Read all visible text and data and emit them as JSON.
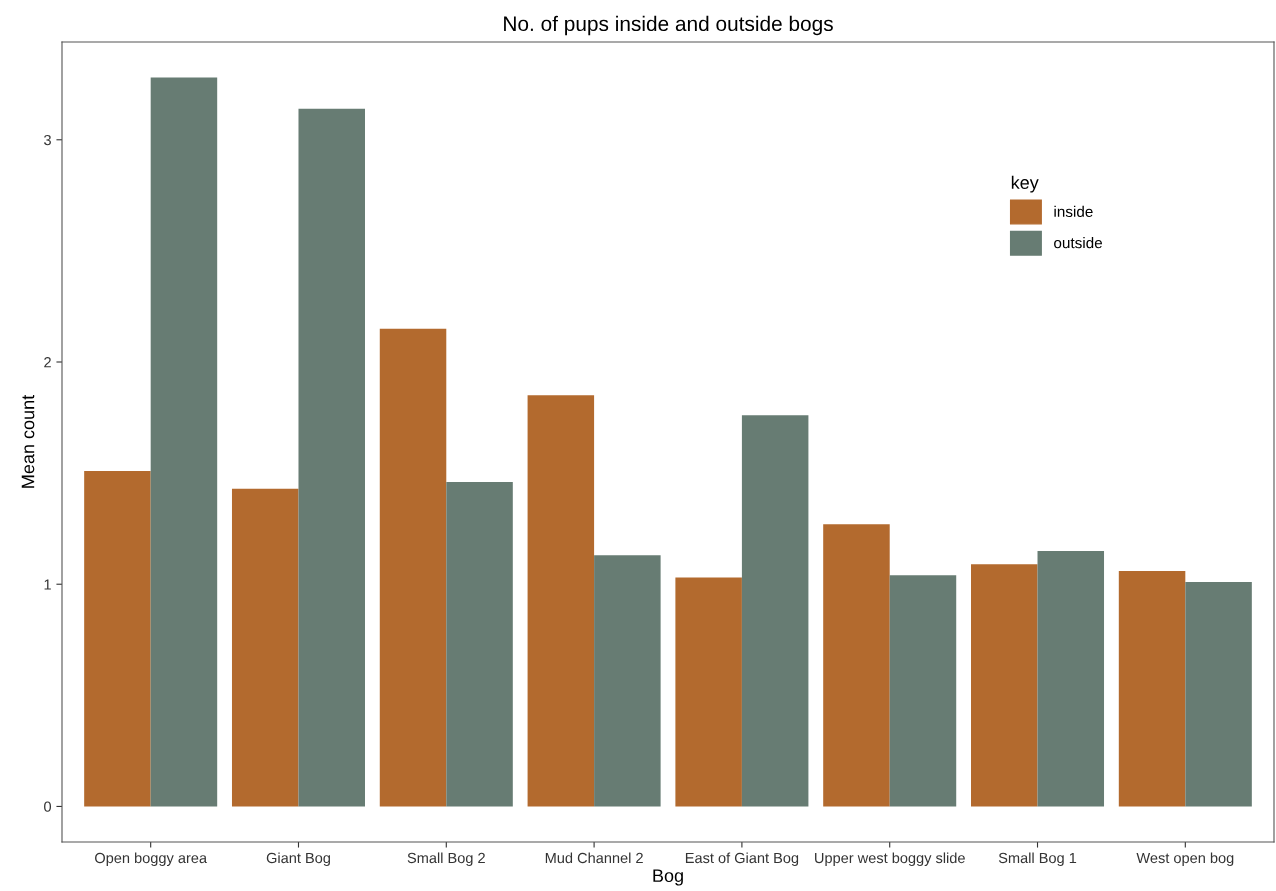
{
  "chart_data": {
    "type": "bar",
    "title": "No. of pups inside and outside bogs",
    "xlabel": "Bog",
    "ylabel": "Mean count",
    "legend_title": "key",
    "categories": [
      "Open boggy area",
      "Giant Bog",
      "Small Bog 2",
      "Mud Channel 2",
      "East of Giant Bog",
      "Upper west boggy slide",
      "Small Bog 1",
      "West open bog"
    ],
    "series": [
      {
        "name": "inside",
        "color": "#b36a2e",
        "values": [
          1.51,
          1.43,
          2.15,
          1.85,
          1.03,
          1.27,
          1.09,
          1.06
        ]
      },
      {
        "name": "outside",
        "color": "#677c73",
        "values": [
          3.28,
          3.14,
          1.46,
          1.13,
          1.76,
          1.04,
          1.15,
          1.01
        ]
      }
    ],
    "ylim": [
      -0.16,
      3.44
    ],
    "yticks": [
      0,
      1,
      2,
      3
    ],
    "grid": false,
    "legend": "top right"
  }
}
